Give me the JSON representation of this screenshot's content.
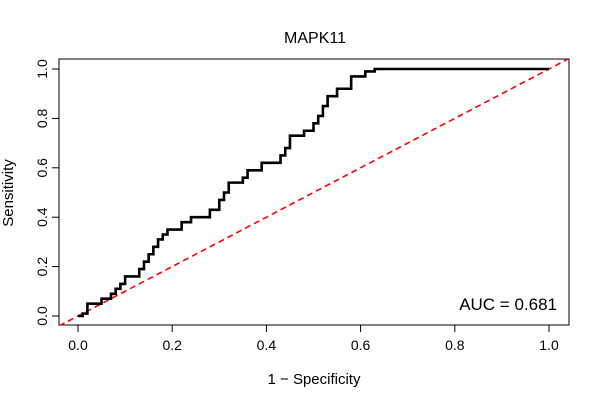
{
  "chart_data": {
    "type": "line",
    "title": "MAPK11",
    "xlabel": "1 − Specificity",
    "ylabel": "Sensitivity",
    "xlim": [
      0,
      1
    ],
    "ylim": [
      0,
      1
    ],
    "xticks": [
      "0.0",
      "0.2",
      "0.4",
      "0.6",
      "0.8",
      "1.0"
    ],
    "yticks": [
      "0.0",
      "0.2",
      "0.4",
      "0.6",
      "0.8",
      "1.0"
    ],
    "grid": false,
    "annotation": "AUC = 0.681",
    "series": [
      {
        "style": "solid",
        "color": "#000000",
        "points": [
          [
            0,
            0
          ],
          [
            0.01,
            0.0
          ],
          [
            0.01,
            0.01
          ],
          [
            0.02,
            0.01
          ],
          [
            0.02,
            0.05
          ],
          [
            0.05,
            0.05
          ],
          [
            0.05,
            0.07
          ],
          [
            0.07,
            0.07
          ],
          [
            0.07,
            0.09
          ],
          [
            0.08,
            0.09
          ],
          [
            0.08,
            0.11
          ],
          [
            0.09,
            0.11
          ],
          [
            0.09,
            0.13
          ],
          [
            0.1,
            0.13
          ],
          [
            0.1,
            0.16
          ],
          [
            0.13,
            0.16
          ],
          [
            0.13,
            0.19
          ],
          [
            0.14,
            0.19
          ],
          [
            0.14,
            0.22
          ],
          [
            0.15,
            0.22
          ],
          [
            0.15,
            0.25
          ],
          [
            0.16,
            0.25
          ],
          [
            0.16,
            0.28
          ],
          [
            0.17,
            0.28
          ],
          [
            0.17,
            0.31
          ],
          [
            0.18,
            0.31
          ],
          [
            0.18,
            0.33
          ],
          [
            0.19,
            0.33
          ],
          [
            0.19,
            0.35
          ],
          [
            0.22,
            0.35
          ],
          [
            0.22,
            0.38
          ],
          [
            0.24,
            0.38
          ],
          [
            0.24,
            0.4
          ],
          [
            0.28,
            0.4
          ],
          [
            0.28,
            0.43
          ],
          [
            0.3,
            0.43
          ],
          [
            0.3,
            0.47
          ],
          [
            0.31,
            0.47
          ],
          [
            0.31,
            0.5
          ],
          [
            0.32,
            0.5
          ],
          [
            0.32,
            0.54
          ],
          [
            0.35,
            0.54
          ],
          [
            0.35,
            0.56
          ],
          [
            0.36,
            0.56
          ],
          [
            0.36,
            0.59
          ],
          [
            0.39,
            0.59
          ],
          [
            0.39,
            0.62
          ],
          [
            0.43,
            0.62
          ],
          [
            0.43,
            0.65
          ],
          [
            0.44,
            0.65
          ],
          [
            0.44,
            0.68
          ],
          [
            0.45,
            0.68
          ],
          [
            0.45,
            0.73
          ],
          [
            0.48,
            0.73
          ],
          [
            0.48,
            0.75
          ],
          [
            0.5,
            0.75
          ],
          [
            0.5,
            0.78
          ],
          [
            0.51,
            0.78
          ],
          [
            0.51,
            0.81
          ],
          [
            0.52,
            0.81
          ],
          [
            0.52,
            0.85
          ],
          [
            0.53,
            0.85
          ],
          [
            0.53,
            0.89
          ],
          [
            0.55,
            0.89
          ],
          [
            0.55,
            0.92
          ],
          [
            0.58,
            0.92
          ],
          [
            0.58,
            0.97
          ],
          [
            0.61,
            0.97
          ],
          [
            0.61,
            0.99
          ],
          [
            0.63,
            0.99
          ],
          [
            0.63,
            1.0
          ],
          [
            1.0,
            1.0
          ]
        ]
      },
      {
        "style": "dashed",
        "color": "#ff0000",
        "points": [
          [
            -0.04,
            -0.04
          ],
          [
            1.04,
            1.04
          ]
        ]
      }
    ]
  }
}
